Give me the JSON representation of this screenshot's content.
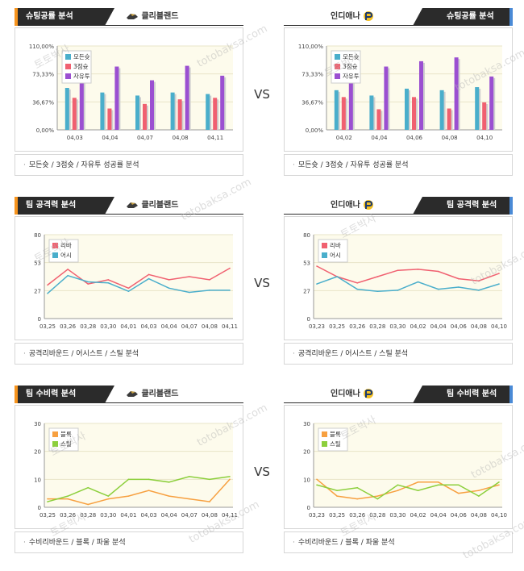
{
  "sections": [
    {
      "key": "shoot",
      "left": {
        "title": "슈팅공률 분석",
        "team": "클리블랜드",
        "footer": "모든슛 / 3점슛 / 자유투 성공률 분석",
        "chart_data": {
          "type": "bar",
          "categories": [
            "04,03",
            "04,04",
            "04,07",
            "04,08",
            "04,11"
          ],
          "series": [
            {
              "name": "모든슛",
              "values": [
                55,
                49,
                45,
                49,
                47
              ]
            },
            {
              "name": "3점슛",
              "values": [
                42,
                28,
                34,
                40,
                42
              ]
            },
            {
              "name": "자유투",
              "values": [
                100,
                83,
                65,
                84,
                71
              ]
            }
          ],
          "yticks": [
            "110,00%",
            "73,33%",
            "36,67%",
            "0,00%"
          ],
          "ylim": [
            0,
            110
          ],
          "legend": "top-left"
        }
      },
      "right": {
        "title": "슈팅공률 분석",
        "team": "인디애나",
        "footer": "모든슛 / 3점슛 / 자유투 성공률 분석",
        "chart_data": {
          "type": "bar",
          "categories": [
            "04,02",
            "04,04",
            "04,06",
            "04,08",
            "04,10"
          ],
          "series": [
            {
              "name": "모든슛",
              "values": [
                52,
                45,
                54,
                52,
                56
              ]
            },
            {
              "name": "3점슛",
              "values": [
                43,
                27,
                43,
                28,
                36
              ]
            },
            {
              "name": "자유투",
              "values": [
                65,
                83,
                90,
                95,
                70
              ]
            }
          ],
          "yticks": [
            "110,00%",
            "73,33%",
            "36,67%",
            "0,00%"
          ],
          "ylim": [
            0,
            110
          ],
          "legend": "top-left"
        }
      }
    },
    {
      "key": "attack",
      "left": {
        "title": "팀 공격력 분석",
        "team": "클리블랜드",
        "footer": "공격리바운드 / 어시스트 / 스틸 분석",
        "chart_data": {
          "type": "line",
          "categories": [
            "03,25",
            "03,26",
            "03,28",
            "03,30",
            "04,01",
            "04,03",
            "04,04",
            "04,07",
            "04,08",
            "04,11"
          ],
          "series": [
            {
              "name": "리바",
              "values": [
                32,
                47,
                33,
                37,
                29,
                42,
                37,
                40,
                37,
                48
              ],
              "color": "#f06070"
            },
            {
              "name": "어시",
              "values": [
                24,
                41,
                35,
                34,
                26,
                38,
                29,
                25,
                27,
                27
              ],
              "color": "#4aaecb"
            }
          ],
          "yticks": [
            "80",
            "53",
            "27",
            "0"
          ],
          "ylim": [
            0,
            80
          ],
          "legend": "top-left"
        }
      },
      "right": {
        "title": "팀 공격력 분석",
        "team": "인디애나",
        "footer": "공격리바운드 / 어시스트 / 스틸 분석",
        "chart_data": {
          "type": "line",
          "categories": [
            "03,23",
            "03,25",
            "03,26",
            "03,28",
            "03,30",
            "04,02",
            "04,04",
            "04,06",
            "04,08",
            "04,10"
          ],
          "series": [
            {
              "name": "리바",
              "values": [
                50,
                40,
                34,
                40,
                46,
                47,
                45,
                38,
                36,
                43
              ],
              "color": "#f06070"
            },
            {
              "name": "어시",
              "values": [
                33,
                40,
                28,
                26,
                27,
                35,
                28,
                30,
                27,
                33
              ],
              "color": "#4aaecb"
            }
          ],
          "yticks": [
            "80",
            "53",
            "27",
            "0"
          ],
          "ylim": [
            0,
            80
          ],
          "legend": "top-left"
        }
      }
    },
    {
      "key": "defense",
      "left": {
        "title": "팀 수비력 분석",
        "team": "클리블랜드",
        "footer": "수비리바운드 / 블록 / 파울 분석",
        "chart_data": {
          "type": "line",
          "categories": [
            "03,25",
            "03,26",
            "03,28",
            "03,30",
            "04,01",
            "04,03",
            "04,04",
            "04,07",
            "04,08",
            "04,11"
          ],
          "series": [
            {
              "name": "블록",
              "values": [
                3,
                3,
                1,
                3,
                4,
                6,
                4,
                3,
                2,
                10
              ],
              "color": "#f7a040"
            },
            {
              "name": "스틸",
              "values": [
                2,
                4,
                7,
                4,
                10,
                10,
                9,
                11,
                10,
                11
              ],
              "color": "#8ccf3c"
            }
          ],
          "yticks": [
            "30",
            "20",
            "10",
            "0"
          ],
          "ylim": [
            0,
            30
          ],
          "legend": "top-left"
        }
      },
      "right": {
        "title": "팀 수비력 분석",
        "team": "인디애나",
        "footer": "수비리바운드 / 블록 / 파울 분석",
        "chart_data": {
          "type": "line",
          "categories": [
            "03,23",
            "03,25",
            "03,26",
            "03,28",
            "03,30",
            "04,02",
            "04,04",
            "04,06",
            "04,08",
            "04,10"
          ],
          "series": [
            {
              "name": "블록",
              "values": [
                10,
                4,
                3,
                4,
                6,
                9,
                9,
                5,
                6,
                8
              ],
              "color": "#f7a040"
            },
            {
              "name": "스틸",
              "values": [
                8,
                6,
                7,
                3,
                8,
                6,
                8,
                8,
                4,
                9
              ],
              "color": "#8ccf3c"
            }
          ],
          "yticks": [
            "30",
            "20",
            "10",
            "0"
          ],
          "ylim": [
            0,
            30
          ],
          "legend": "top-left"
        }
      }
    }
  ],
  "vs_label": "VS",
  "bar_colors": [
    "#4aaecb",
    "#f06070",
    "#9b4fd1"
  ],
  "watermarks": [
    "토토박사",
    "totobaksa.com"
  ]
}
